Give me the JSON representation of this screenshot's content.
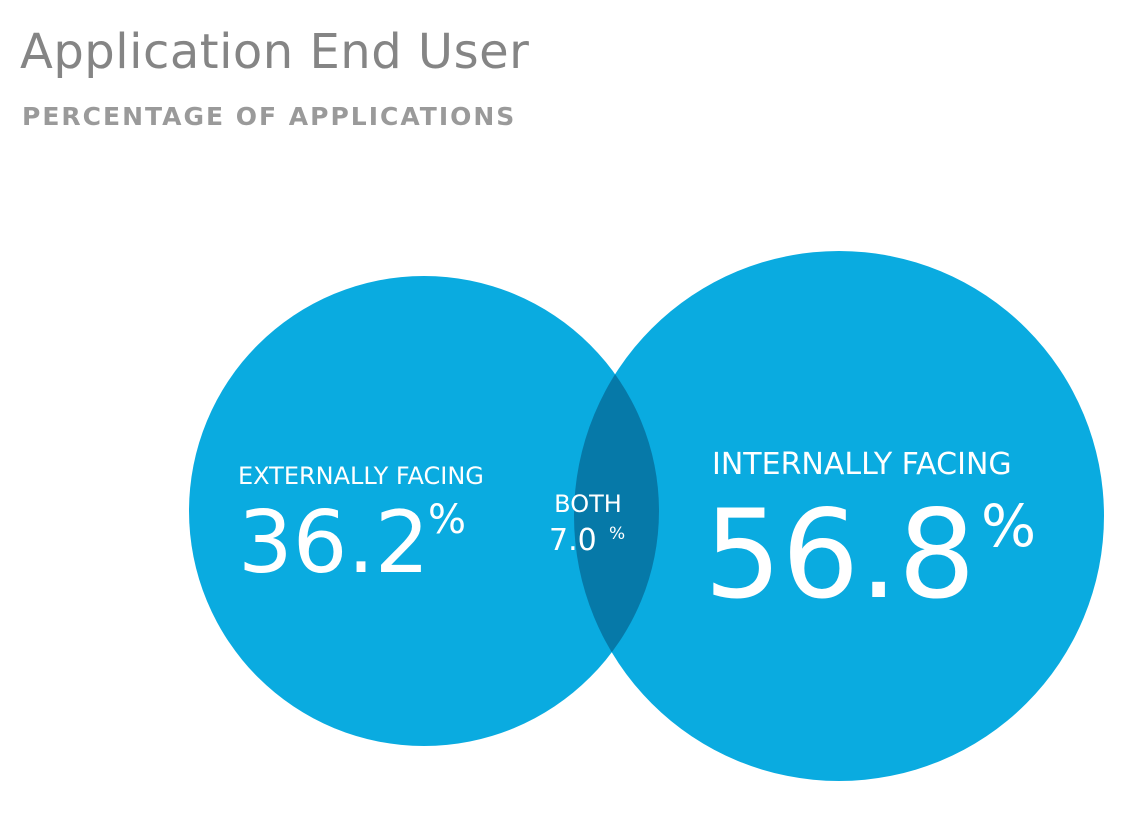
{
  "header": {
    "title": "Application End User",
    "subtitle": "PERCENTAGE OF APPLICATIONS"
  },
  "colors": {
    "circle": "#0aabe0",
    "overlap": "#0679a8",
    "text_on_circle": "#ffffff",
    "title": "#858585",
    "subtitle": "#9a9a9a"
  },
  "chart_data": {
    "type": "venn",
    "title": "Application End User",
    "subtitle": "PERCENTAGE OF APPLICATIONS",
    "unit": "%",
    "sets": [
      {
        "label": "EXTERNALLY FACING",
        "value": 36.2,
        "display": "36.2"
      },
      {
        "label": "INTERNALLY FACING",
        "value": 56.8,
        "display": "56.8"
      }
    ],
    "intersection": {
      "label": "BOTH",
      "value": 7.0,
      "display": "7.0"
    }
  }
}
